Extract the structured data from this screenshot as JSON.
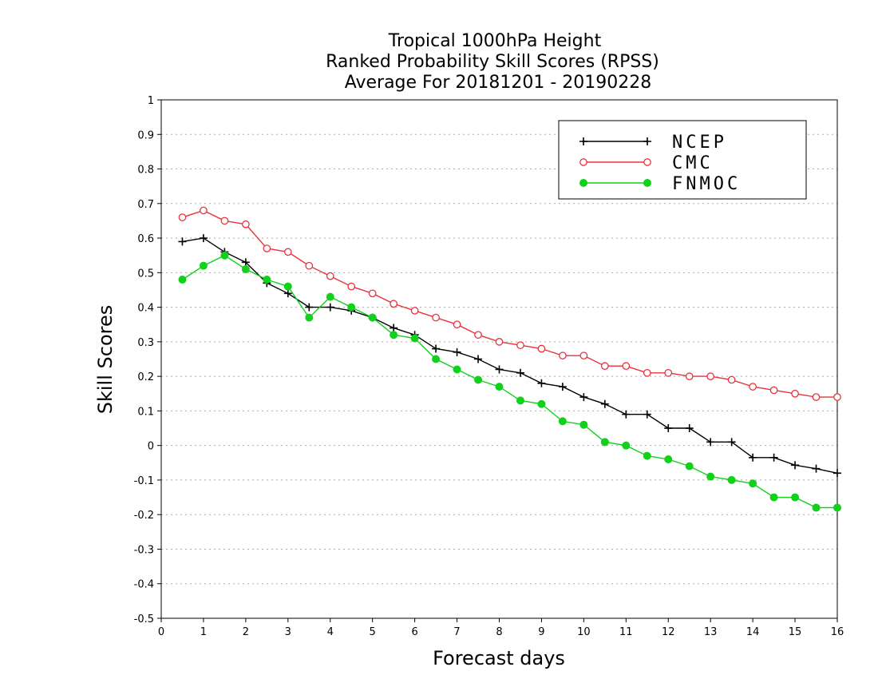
{
  "chart_data": {
    "type": "line",
    "title": [
      "Tropical 1000hPa Height",
      "Ranked Probability Skill Scores (RPSS)",
      "Average For 20181201 - 20190228"
    ],
    "xlabel": "Forecast days",
    "ylabel": "Skill Scores",
    "xlim": [
      0,
      16
    ],
    "ylim": [
      -0.5,
      1
    ],
    "xticks": [
      "0",
      "1",
      "2",
      "3",
      "4",
      "5",
      "6",
      "7",
      "8",
      "9",
      "10",
      "11",
      "12",
      "13",
      "14",
      "15",
      "16"
    ],
    "yticks": [
      "-0.5",
      "-0.4",
      "-0.3",
      "-0.2",
      "-0.1",
      "0",
      "0.1",
      "0.2",
      "0.3",
      "0.4",
      "0.5",
      "0.6",
      "0.7",
      "0.8",
      "0.9",
      "1"
    ],
    "grid": "horizontal dotted",
    "legend_position": "top-right",
    "x": [
      0.5,
      1,
      1.5,
      2,
      2.5,
      3,
      3.5,
      4,
      4.5,
      5,
      5.5,
      6,
      6.5,
      7,
      7.5,
      8,
      8.5,
      9,
      9.5,
      10,
      10.5,
      11,
      11.5,
      12,
      12.5,
      13,
      13.5,
      14,
      14.5,
      15,
      15.5,
      16
    ],
    "series": [
      {
        "name": "NCEP",
        "color": "#000000",
        "marker": "plus",
        "values": [
          0.59,
          0.6,
          0.56,
          0.53,
          0.47,
          0.44,
          0.4,
          0.4,
          0.39,
          0.37,
          0.34,
          0.32,
          0.28,
          0.27,
          0.25,
          0.22,
          0.21,
          0.18,
          0.17,
          0.14,
          0.12,
          0.09,
          0.09,
          0.05,
          0.05,
          0.01,
          0.01,
          -0.035,
          -0.035,
          -0.057,
          -0.067,
          -0.08
        ]
      },
      {
        "name": "CMC",
        "color": "#e8323c",
        "marker": "open-circle",
        "values": [
          0.66,
          0.68,
          0.65,
          0.64,
          0.57,
          0.56,
          0.52,
          0.49,
          0.46,
          0.44,
          0.41,
          0.39,
          0.37,
          0.35,
          0.32,
          0.3,
          0.29,
          0.28,
          0.26,
          0.26,
          0.23,
          0.23,
          0.21,
          0.21,
          0.2,
          0.2,
          0.19,
          0.17,
          0.16,
          0.15,
          0.14,
          0.14
        ]
      },
      {
        "name": "FNMOC",
        "color": "#11d11b",
        "marker": "filled-circle",
        "values": [
          0.48,
          0.52,
          0.55,
          0.51,
          0.48,
          0.46,
          0.37,
          0.43,
          0.4,
          0.37,
          0.32,
          0.31,
          0.25,
          0.22,
          0.19,
          0.17,
          0.13,
          0.12,
          0.07,
          0.06,
          0.01,
          0.0,
          -0.03,
          -0.04,
          -0.06,
          -0.09,
          -0.1,
          -0.11,
          -0.15,
          -0.15,
          -0.18,
          -0.18
        ]
      }
    ]
  }
}
